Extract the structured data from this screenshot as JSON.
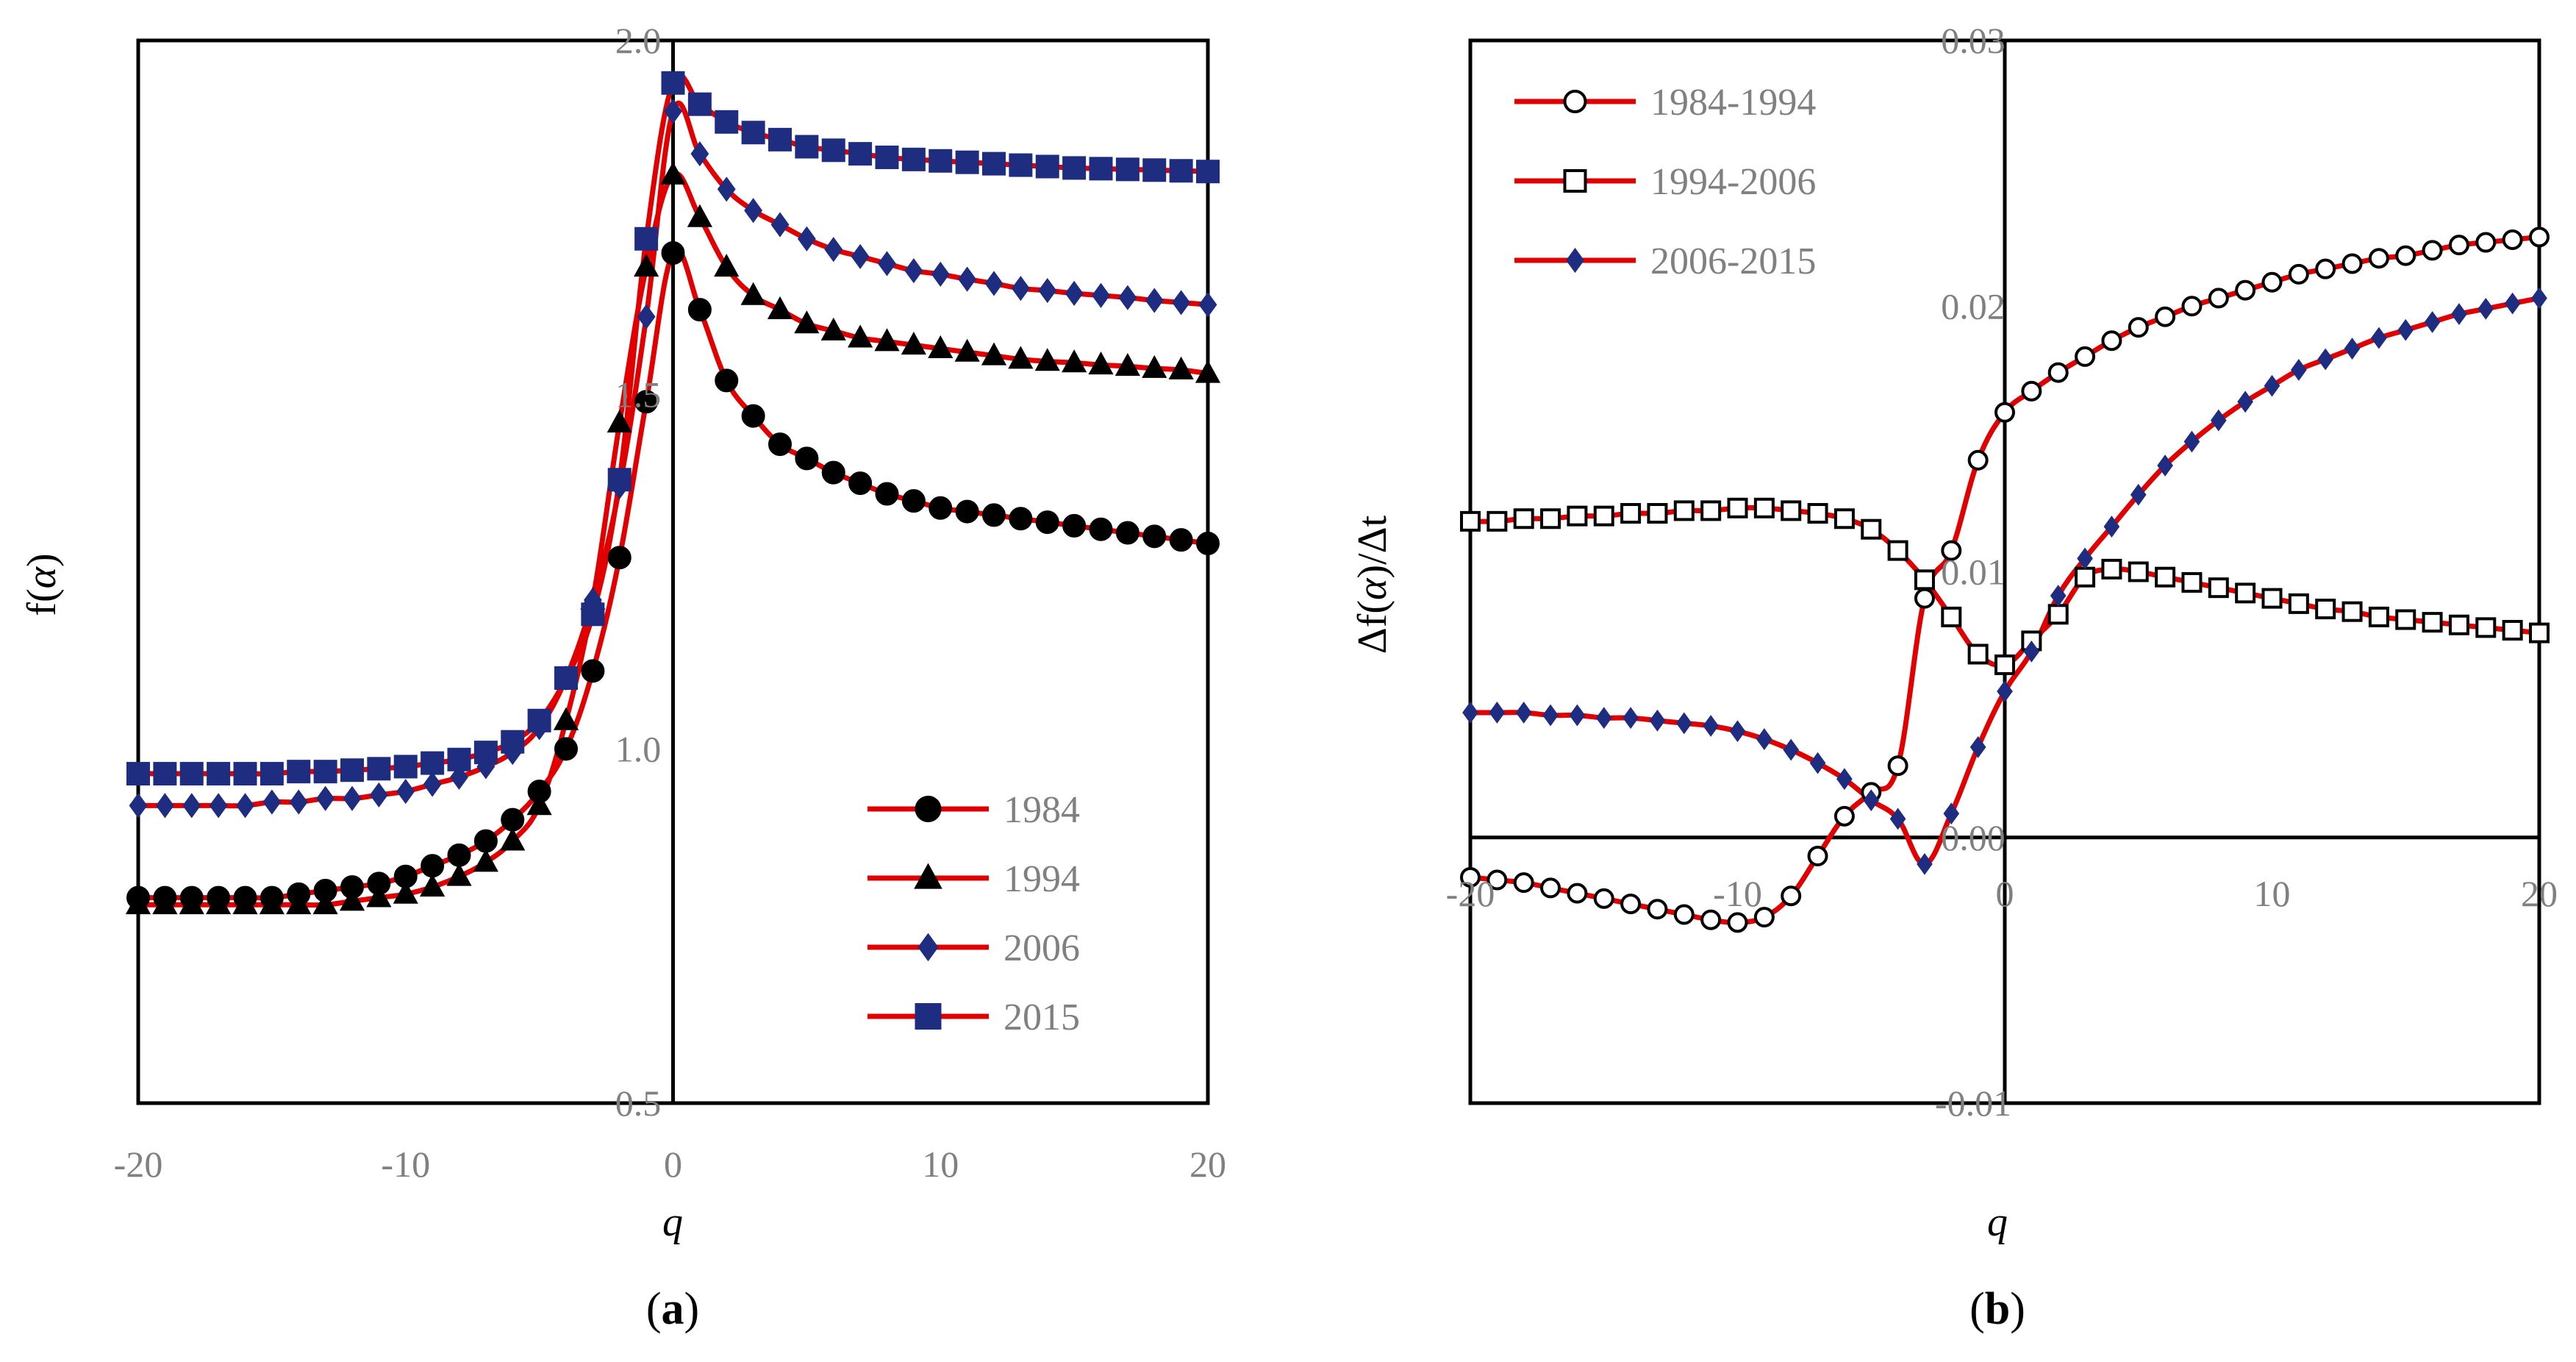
{
  "chart_data": [
    {
      "type": "line",
      "panel_label": "(a)",
      "panel_letter": "a",
      "xlabel": "q",
      "ylabel_prefix": "f(",
      "ylabel_var": "α",
      "ylabel_suffix": ")",
      "xlim": [
        -20,
        20
      ],
      "ylim": [
        0.5,
        2.0
      ],
      "xticks": [
        -20,
        -10,
        0,
        10,
        20
      ],
      "xtick_labels": [
        "-20",
        "-10",
        "0",
        "10",
        "20"
      ],
      "yticks": [
        0.5,
        1.0,
        1.5,
        2.0
      ],
      "ytick_labels": [
        "0.5",
        "1.0",
        "1.5",
        "2.0"
      ],
      "legend_position": "bottom-right",
      "line_color": "#e00000",
      "series": [
        {
          "name": "1984",
          "marker": "circle",
          "marker_fill": "#000000",
          "marker_edge": "#000000",
          "x": [
            -20,
            -19,
            -18,
            -17,
            -16,
            -15,
            -14,
            -13,
            -12,
            -11,
            -10,
            -9,
            -8,
            -7,
            -6,
            -5,
            -4,
            -3,
            -2,
            -1,
            0,
            1,
            2,
            3,
            4,
            5,
            6,
            7,
            8,
            9,
            10,
            11,
            12,
            13,
            14,
            15,
            16,
            17,
            18,
            19,
            20
          ],
          "values": [
            0.79,
            0.79,
            0.79,
            0.79,
            0.79,
            0.79,
            0.795,
            0.8,
            0.805,
            0.81,
            0.82,
            0.835,
            0.85,
            0.87,
            0.9,
            0.94,
            1.0,
            1.11,
            1.27,
            1.49,
            1.7,
            1.62,
            1.52,
            1.47,
            1.43,
            1.41,
            1.39,
            1.375,
            1.36,
            1.35,
            1.34,
            1.335,
            1.33,
            1.325,
            1.32,
            1.315,
            1.31,
            1.305,
            1.3,
            1.295,
            1.29
          ]
        },
        {
          "name": "1994",
          "marker": "triangle",
          "marker_fill": "#000000",
          "marker_edge": "#000000",
          "x": [
            -20,
            -19,
            -18,
            -17,
            -16,
            -15,
            -14,
            -13,
            -12,
            -11,
            -10,
            -9,
            -8,
            -7,
            -6,
            -5,
            -4,
            -3,
            -2,
            -1,
            0,
            1,
            2,
            3,
            4,
            5,
            6,
            7,
            8,
            9,
            10,
            11,
            12,
            13,
            14,
            15,
            16,
            17,
            18,
            19,
            20
          ],
          "values": [
            0.78,
            0.78,
            0.78,
            0.78,
            0.78,
            0.78,
            0.78,
            0.78,
            0.785,
            0.79,
            0.795,
            0.805,
            0.82,
            0.84,
            0.87,
            0.92,
            1.04,
            1.21,
            1.46,
            1.68,
            1.81,
            1.75,
            1.68,
            1.64,
            1.62,
            1.6,
            1.59,
            1.58,
            1.575,
            1.57,
            1.565,
            1.56,
            1.555,
            1.55,
            1.547,
            1.545,
            1.542,
            1.54,
            1.537,
            1.535,
            1.53
          ]
        },
        {
          "name": "2006",
          "marker": "diamond",
          "marker_fill": "#1f2d80",
          "marker_edge": "#1f2d80",
          "x": [
            -20,
            -19,
            -18,
            -17,
            -16,
            -15,
            -14,
            -13,
            -12,
            -11,
            -10,
            -9,
            -8,
            -7,
            -6,
            -5,
            -4,
            -3,
            -2,
            -1,
            0,
            1,
            2,
            3,
            4,
            5,
            6,
            7,
            8,
            9,
            10,
            11,
            12,
            13,
            14,
            15,
            16,
            17,
            18,
            19,
            20
          ],
          "values": [
            0.92,
            0.92,
            0.92,
            0.92,
            0.92,
            0.925,
            0.925,
            0.93,
            0.93,
            0.935,
            0.94,
            0.95,
            0.96,
            0.975,
            0.995,
            1.03,
            1.1,
            1.21,
            1.37,
            1.61,
            1.9,
            1.84,
            1.79,
            1.76,
            1.74,
            1.72,
            1.705,
            1.695,
            1.685,
            1.675,
            1.67,
            1.663,
            1.657,
            1.65,
            1.647,
            1.643,
            1.64,
            1.637,
            1.633,
            1.63,
            1.627
          ]
        },
        {
          "name": "2015",
          "marker": "square",
          "marker_fill": "#1f2d80",
          "marker_edge": "#1f2d80",
          "x": [
            -20,
            -19,
            -18,
            -17,
            -16,
            -15,
            -14,
            -13,
            -12,
            -11,
            -10,
            -9,
            -8,
            -7,
            -6,
            -5,
            -4,
            -3,
            -2,
            -1,
            0,
            1,
            2,
            3,
            4,
            5,
            6,
            7,
            8,
            9,
            10,
            11,
            12,
            13,
            14,
            15,
            16,
            17,
            18,
            19,
            20
          ],
          "values": [
            0.965,
            0.965,
            0.965,
            0.965,
            0.965,
            0.965,
            0.968,
            0.968,
            0.97,
            0.972,
            0.975,
            0.98,
            0.985,
            0.995,
            1.01,
            1.04,
            1.1,
            1.19,
            1.38,
            1.72,
            1.94,
            1.91,
            1.885,
            1.87,
            1.86,
            1.85,
            1.845,
            1.84,
            1.835,
            1.832,
            1.83,
            1.828,
            1.826,
            1.824,
            1.822,
            1.82,
            1.819,
            1.818,
            1.817,
            1.816,
            1.815
          ]
        }
      ]
    },
    {
      "type": "line",
      "panel_label": "(b)",
      "panel_letter": "b",
      "xlabel": "q",
      "ylabel_prefix": "Δf(",
      "ylabel_var": "α",
      "ylabel_suffix": ")/Δt",
      "xlim": [
        -20,
        20
      ],
      "ylim": [
        -0.01,
        0.03
      ],
      "xticks": [
        -20,
        -10,
        0,
        10,
        20
      ],
      "xtick_labels": [
        "-20",
        "-10",
        "0",
        "10",
        "20"
      ],
      "yticks": [
        -0.01,
        0.0,
        0.01,
        0.02,
        0.03
      ],
      "ytick_labels": [
        "-0.01",
        "0.00",
        "0.01",
        "0.02",
        "0.03"
      ],
      "legend_position": "top-left",
      "line_color": "#e00000",
      "series": [
        {
          "name": "1984-1994",
          "marker": "circle",
          "marker_fill": "#ffffff",
          "marker_edge": "#000000",
          "x": [
            -20,
            -19,
            -18,
            -17,
            -16,
            -15,
            -14,
            -13,
            -12,
            -11,
            -10,
            -9,
            -8,
            -7,
            -6,
            -5,
            -4,
            -3,
            -2,
            -1,
            0,
            1,
            2,
            3,
            4,
            5,
            6,
            7,
            8,
            9,
            10,
            11,
            12,
            13,
            14,
            15,
            16,
            17,
            18,
            19,
            20
          ],
          "values": [
            -0.0015,
            -0.0016,
            -0.0017,
            -0.0019,
            -0.0021,
            -0.0023,
            -0.0025,
            -0.0027,
            -0.0029,
            -0.0031,
            -0.0032,
            -0.003,
            -0.0022,
            -0.0007,
            0.0008,
            0.0017,
            0.0027,
            0.009,
            0.0108,
            0.0142,
            0.016,
            0.0168,
            0.0175,
            0.0181,
            0.0187,
            0.0192,
            0.0196,
            0.02,
            0.0203,
            0.0206,
            0.0209,
            0.0212,
            0.0214,
            0.0216,
            0.0218,
            0.0219,
            0.0221,
            0.0223,
            0.0224,
            0.0225,
            0.0226
          ]
        },
        {
          "name": "1994-2006",
          "marker": "square",
          "marker_fill": "#ffffff",
          "marker_edge": "#000000",
          "x": [
            -20,
            -19,
            -18,
            -17,
            -16,
            -15,
            -14,
            -13,
            -12,
            -11,
            -10,
            -9,
            -8,
            -7,
            -6,
            -5,
            -4,
            -3,
            -2,
            -1,
            0,
            1,
            2,
            3,
            4,
            5,
            6,
            7,
            8,
            9,
            10,
            11,
            12,
            13,
            14,
            15,
            16,
            17,
            18,
            19,
            20
          ],
          "values": [
            0.0119,
            0.0119,
            0.012,
            0.012,
            0.0121,
            0.0121,
            0.0122,
            0.0122,
            0.0123,
            0.0123,
            0.0124,
            0.0124,
            0.0123,
            0.0122,
            0.012,
            0.0116,
            0.0108,
            0.0097,
            0.0083,
            0.0069,
            0.0065,
            0.0074,
            0.0084,
            0.0098,
            0.0101,
            0.01,
            0.0098,
            0.0096,
            0.0094,
            0.0092,
            0.009,
            0.0088,
            0.0086,
            0.0085,
            0.0083,
            0.0082,
            0.0081,
            0.008,
            0.0079,
            0.0078,
            0.0077
          ]
        },
        {
          "name": "2006-2015",
          "marker": "diamond",
          "marker_fill": "#1f2d80",
          "marker_edge": "#1f2d80",
          "x": [
            -20,
            -19,
            -18,
            -17,
            -16,
            -15,
            -14,
            -13,
            -12,
            -11,
            -10,
            -9,
            -8,
            -7,
            -6,
            -5,
            -4,
            -3,
            -2,
            -1,
            0,
            1,
            2,
            3,
            4,
            5,
            6,
            7,
            8,
            9,
            10,
            11,
            12,
            13,
            14,
            15,
            16,
            17,
            18,
            19,
            20
          ],
          "values": [
            0.0047,
            0.0047,
            0.0047,
            0.0046,
            0.0046,
            0.0045,
            0.0045,
            0.0044,
            0.0043,
            0.0042,
            0.004,
            0.0037,
            0.0033,
            0.0028,
            0.0022,
            0.0014,
            0.0007,
            -0.001,
            0.0009,
            0.0034,
            0.0055,
            0.007,
            0.0091,
            0.0105,
            0.0117,
            0.0129,
            0.014,
            0.0149,
            0.0157,
            0.0164,
            0.017,
            0.0176,
            0.018,
            0.0184,
            0.0188,
            0.0191,
            0.0194,
            0.0197,
            0.0199,
            0.0201,
            0.0203
          ]
        }
      ]
    }
  ]
}
